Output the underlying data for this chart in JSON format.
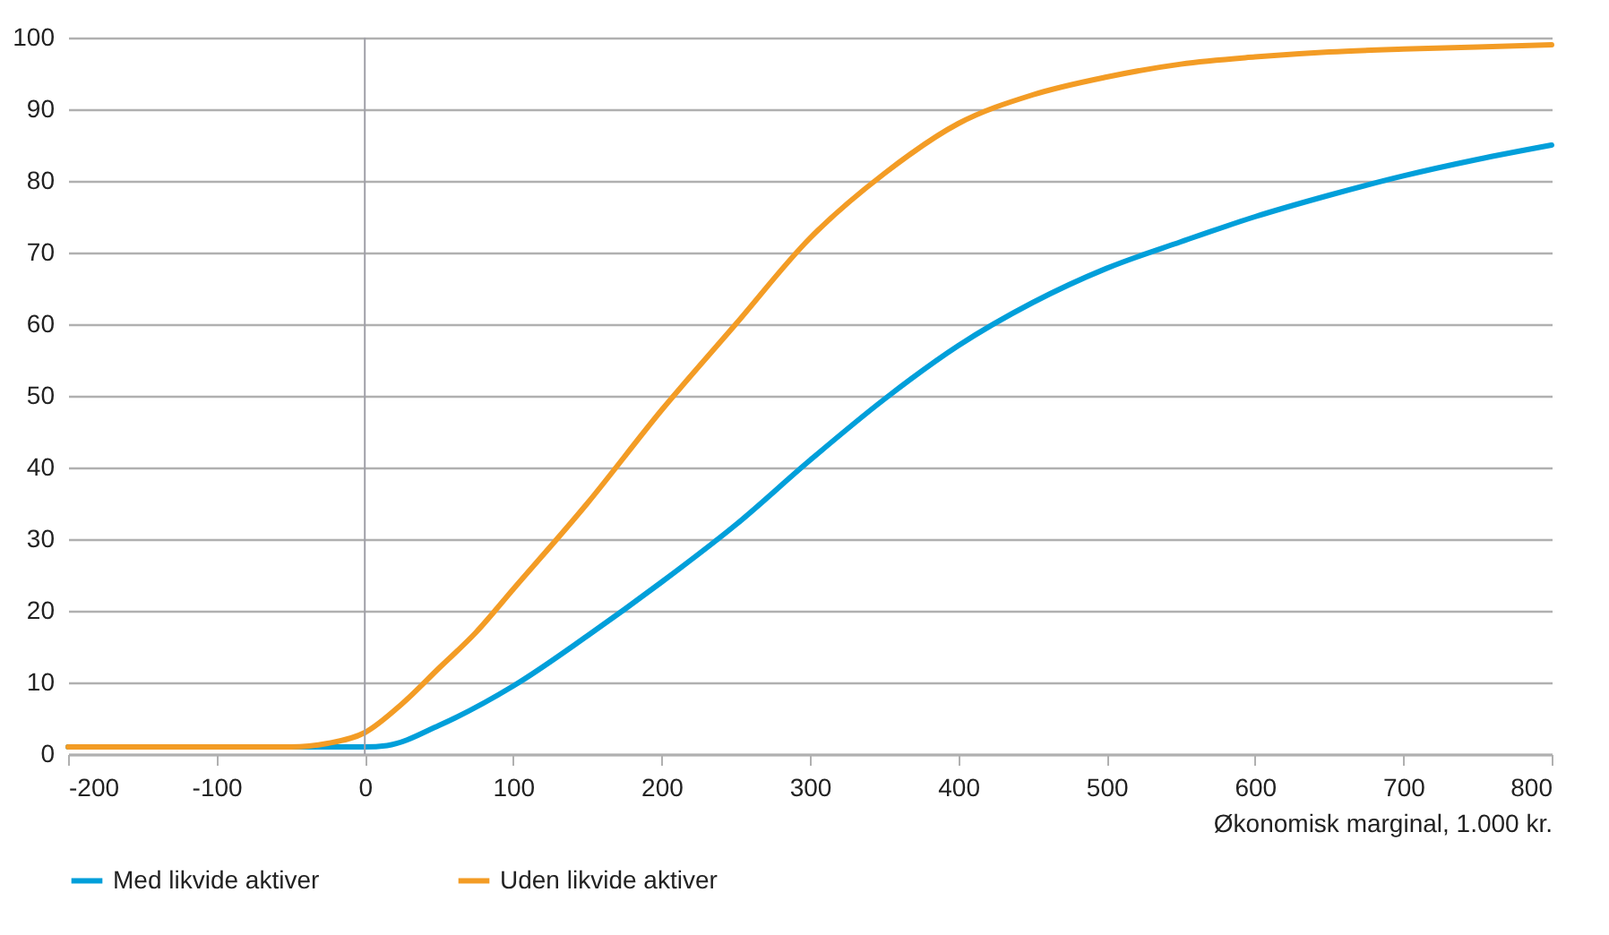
{
  "chart_data": {
    "type": "line",
    "xlabel": "Økonomisk marginal, 1.000 kr.",
    "xlim": [
      -200,
      800
    ],
    "xticks": [
      -200,
      -100,
      0,
      100,
      200,
      300,
      400,
      500,
      600,
      700,
      800
    ],
    "ylim": [
      0,
      100
    ],
    "yticks": [
      0,
      10,
      20,
      30,
      40,
      50,
      60,
      70,
      80,
      90,
      100
    ],
    "grid": "y",
    "legend": "bottom",
    "marker": "none",
    "line_style": "solid",
    "ref_lines": [
      {
        "axis": "x",
        "value": 0,
        "color": "#a0a0a8"
      }
    ],
    "series": [
      {
        "name": "Med likvide aktiver",
        "color": "#009fda",
        "x": [
          -200,
          -100,
          0,
          15,
          50,
          100,
          150,
          200,
          250,
          300,
          350,
          400,
          450,
          500,
          550,
          600,
          650,
          700,
          750,
          800
        ],
        "values": [
          1,
          1,
          1,
          1.2,
          4,
          9.5,
          16.5,
          24,
          32,
          41,
          49.5,
          57,
          63,
          67.8,
          71.5,
          75,
          78,
          80.7,
          83,
          85
        ]
      },
      {
        "name": "Uden likvide aktiver",
        "color": "#f39c25",
        "x": [
          -200,
          -100,
          -50,
          -25,
          0,
          25,
          50,
          75,
          100,
          150,
          200,
          250,
          300,
          350,
          400,
          450,
          500,
          550,
          600,
          650,
          700,
          750,
          800
        ],
        "values": [
          1,
          1,
          1,
          1.5,
          3,
          7,
          12,
          17,
          23,
          35,
          48,
          60,
          72,
          81,
          88,
          92,
          94.5,
          96.3,
          97.3,
          98,
          98.4,
          98.7,
          99
        ]
      }
    ]
  }
}
